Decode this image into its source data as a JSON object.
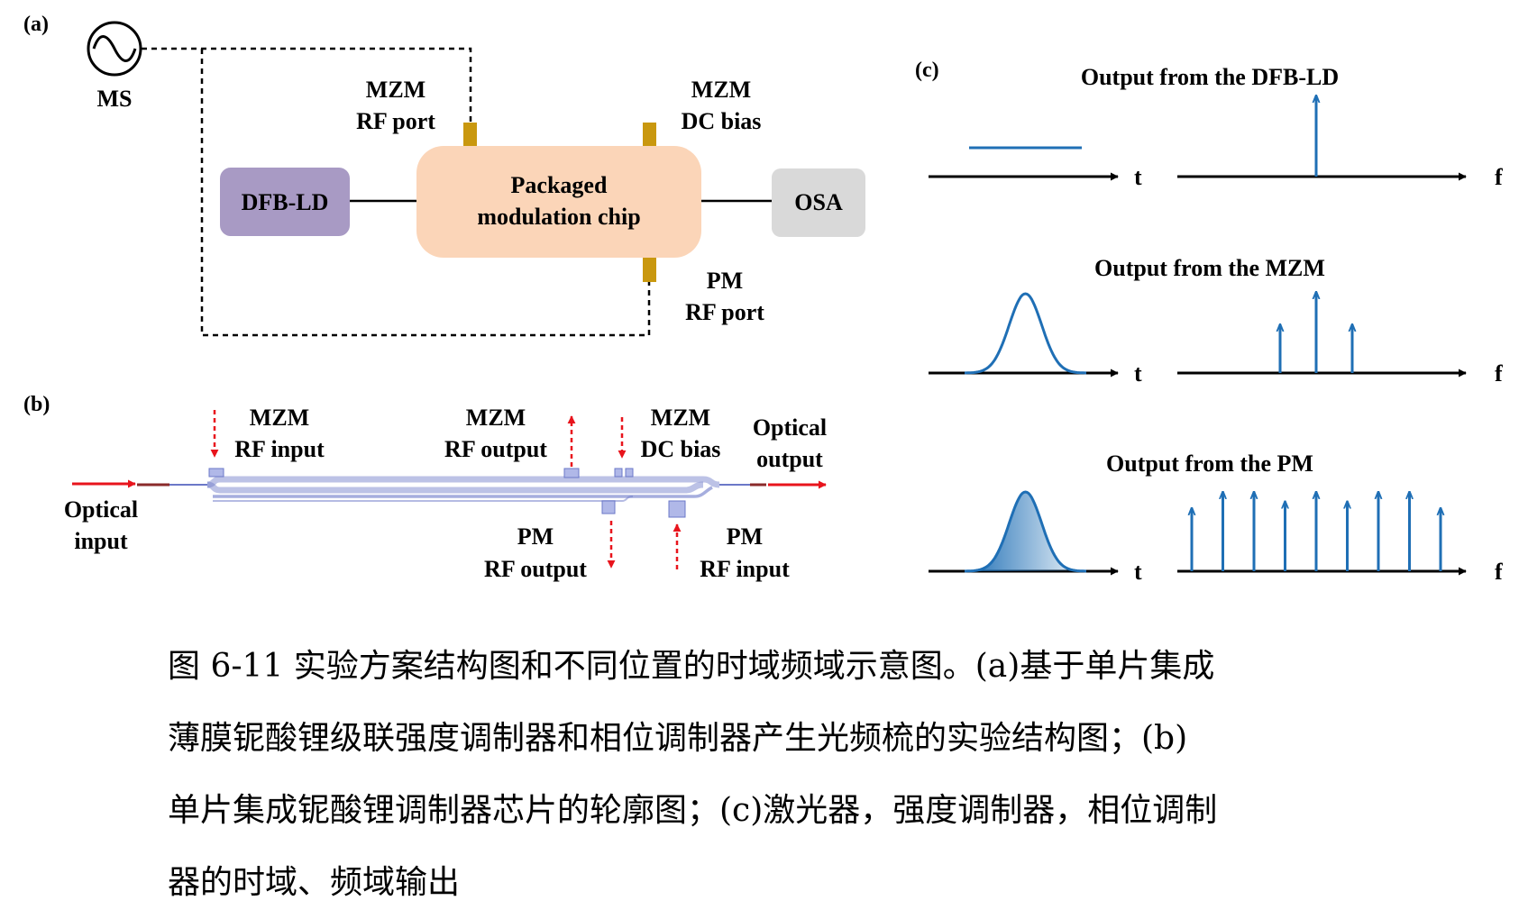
{
  "colors": {
    "signal": "#1f6fb5",
    "dfb": "#a89ac4",
    "chip": "#fbd5b8",
    "osa": "#d9d9d9",
    "pad": "#c9980f",
    "arrow_red": "#e8141c",
    "chip_outline": "#6b78c8"
  },
  "panel_a": {
    "label": "(a)",
    "ms_label": "MS",
    "ms_icon": "sine-wave-source-icon",
    "dfb_label": "DFB-LD",
    "chip_label_line1": "Packaged",
    "chip_label_line2": "modulation chip",
    "osa_label": "OSA",
    "mzm_rf_line1": "MZM",
    "mzm_rf_line2": "RF port",
    "mzm_dc_line1": "MZM",
    "mzm_dc_line2": "DC bias",
    "pm_rf_line1": "PM",
    "pm_rf_line2": "RF port"
  },
  "panel_b": {
    "label": "(b)",
    "optical_input_line1": "Optical",
    "optical_input_line2": "input",
    "mzm_rf_input_line1": "MZM",
    "mzm_rf_input_line2": "RF input",
    "mzm_rf_output_line1": "MZM",
    "mzm_rf_output_line2": "RF output",
    "mzm_dc_line1": "MZM",
    "mzm_dc_line2": "DC bias",
    "optical_output_line1": "Optical",
    "optical_output_line2": "output",
    "pm_rf_output_line1": "PM",
    "pm_rf_output_line2": "RF output",
    "pm_rf_input_line1": "PM",
    "pm_rf_input_line2": "RF input"
  },
  "panel_c": {
    "label": "(c)",
    "t_label": "t",
    "f_label": "f",
    "rows": [
      {
        "title": "Output from the DFB-LD",
        "time_shape": "continuous-wave",
        "spectrum_lines": [
          1.0
        ]
      },
      {
        "title": "Output from the MZM",
        "time_shape": "gaussian-pulse",
        "spectrum_lines": [
          0.6,
          1.0,
          0.6
        ]
      },
      {
        "title": "Output from the PM",
        "time_shape": "gaussian-pulse-filled",
        "spectrum_lines": [
          0.78,
          0.98,
          0.98,
          0.86,
          0.98,
          0.86,
          0.98,
          0.98,
          0.78
        ]
      }
    ]
  },
  "caption": {
    "line1": "图 6-11  实验方案结构图和不同位置的时域频域示意图。(a)基于单片集成",
    "line2": "薄膜铌酸锂级联强度调制器和相位调制器产生光频梳的实验结构图；(b)",
    "line3": "单片集成铌酸锂调制器芯片的轮廓图；(c)激光器，强度调制器，相位调制",
    "line4": "器的时域、频域输出"
  }
}
